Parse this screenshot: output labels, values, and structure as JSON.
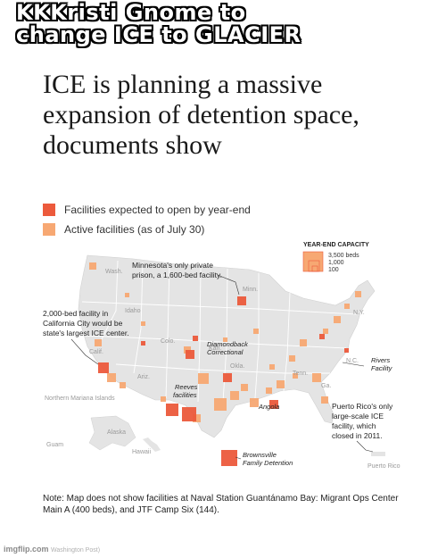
{
  "meme": {
    "caption": "KKKristi  Gnome  to\nchange ICE  to  GLACIER"
  },
  "headline": "ICE is planning a massive expansion of detention space, documents show",
  "legend": {
    "items": [
      {
        "label": "Facilities expected to open by year-end",
        "color": "#ec5a3c"
      },
      {
        "label": "Active facilities (as of July 30)",
        "color": "#f7a873"
      }
    ]
  },
  "capacity_legend": {
    "title": "YEAR-END CAPACITY",
    "values": [
      "3,500 beds",
      "1,000",
      "100"
    ]
  },
  "map": {
    "land_color": "#e4e4e4",
    "border_color": "#ffffff",
    "state_labels": [
      "Wash.",
      "Idaho",
      "Colo.",
      "Ariz.",
      "Minn.",
      "Kan.",
      "Okla.",
      "Tenn.",
      "Ga.",
      "N.C.",
      "N.Y.",
      "Calif."
    ],
    "territory_labels": [
      "Northern Mariana Islands",
      "Alaska",
      "Guam",
      "Hawaii",
      "Puerto Rico"
    ],
    "callouts": [
      {
        "text": "Minnesota's only private",
        "line2": "prison, a 1,600-bed facility."
      },
      {
        "text": "2,000-bed facility in",
        "line2": "California City would be",
        "line3": "state's largest ICE center."
      },
      {
        "text": "Puerto Rico's only",
        "line2": "large-scale ICE",
        "line3": "facility, which",
        "line4": "closed in 2011."
      }
    ],
    "facility_names": [
      "Diamondback",
      "Correctional",
      "Reeves",
      "facilities",
      "Angola",
      "Rivers",
      "Facility",
      "Brownsville",
      "Family Detention"
    ]
  },
  "note": "Note: Map does not show facilities at Naval Station Guantánamo Bay: Migrant Ops Center Main A (400 beds), and JTF Camp Six (144).",
  "watermark": {
    "brand": "imgflip.com",
    "source": "Washington Post)"
  }
}
